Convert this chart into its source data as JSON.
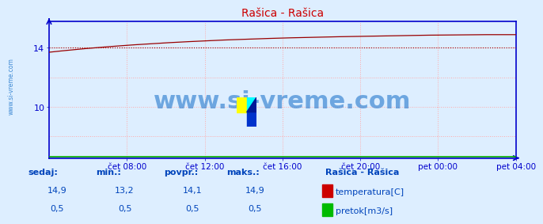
{
  "title": "Rašica - Rašica",
  "title_color": "#cc0000",
  "bg_color": "#ddeeff",
  "plot_bg_color": "#ddeeff",
  "spine_color": "#0000cc",
  "grid_color": "#ffaaaa",
  "grid_ls": "dotted",
  "text_color": "#0044bb",
  "watermark_text": "www.si-vreme.com",
  "watermark_color": "#2277cc",
  "watermark_alpha": 0.6,
  "watermark_fontsize": 22,
  "left_watermark": "www.si-vreme.com",
  "left_watermark_color": "#2277cc",
  "xlim_start": 0,
  "xlim_end": 288,
  "ylim_bottom": 6.5,
  "ylim_top": 15.8,
  "yticks": [
    10,
    14
  ],
  "temp_min": 13.2,
  "temp_max": 14.9,
  "temp_avg": 14.1,
  "temp_current": 14.9,
  "flow_min": 0.5,
  "flow_max": 0.5,
  "flow_avg": 0.5,
  "flow_current": 0.5,
  "dashed_line_value": 14.0,
  "x_tick_labels": [
    "čet 08:00",
    "čet 12:00",
    "čet 16:00",
    "čet 20:00",
    "pet 00:00",
    "pet 04:00"
  ],
  "x_tick_positions": [
    48,
    96,
    144,
    192,
    240,
    288
  ],
  "legend_station": "Rašica - Rašica",
  "legend_temp_label": "temperatura[C]",
  "legend_flow_label": "pretok[m3/s]",
  "legend_temp_color": "#cc0000",
  "legend_flow_color": "#00bb00",
  "sedaj_label": "sedaj:",
  "min_label": "min.:",
  "povpr_label": "povpr.:",
  "maks_label": "maks.:",
  "temp_line_color": "#990000",
  "flow_line_color": "#00aa00"
}
